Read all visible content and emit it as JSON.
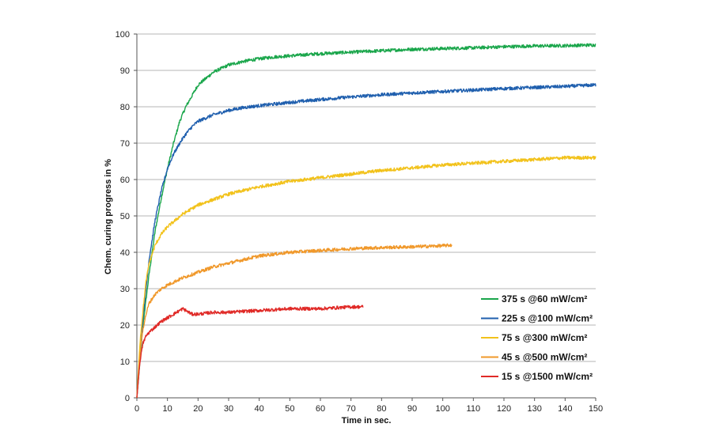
{
  "chart_data": {
    "type": "line",
    "title": "",
    "xlabel": "Time in sec.",
    "ylabel": "Chem. curing progress in %",
    "xlim": [
      0,
      150
    ],
    "ylim": [
      0,
      100
    ],
    "x_ticks": [
      0,
      10,
      20,
      30,
      40,
      50,
      60,
      70,
      80,
      90,
      100,
      110,
      120,
      130,
      140,
      150
    ],
    "y_ticks": [
      0,
      10,
      20,
      30,
      40,
      50,
      60,
      70,
      80,
      90,
      100
    ],
    "grid": "horizontal",
    "legend_position": "bottom-right",
    "series": [
      {
        "name": "375 s @60 mW/cm²",
        "color": "#1aa64b",
        "x": [
          0,
          2,
          4,
          6,
          8,
          10,
          12,
          14,
          16,
          18,
          20,
          25,
          30,
          35,
          40,
          45,
          50,
          55,
          60,
          70,
          80,
          90,
          100,
          110,
          120,
          130,
          140,
          150
        ],
        "y": [
          0,
          20,
          34,
          46,
          55,
          63,
          70,
          76,
          80,
          83,
          86,
          89.5,
          91.5,
          92.5,
          93.2,
          93.7,
          94,
          94.3,
          94.6,
          95,
          95.4,
          95.8,
          96,
          96.2,
          96.5,
          96.7,
          96.8,
          97
        ]
      },
      {
        "name": "225 s @100 mW/cm²",
        "color": "#1f5fae",
        "x": [
          0,
          2,
          4,
          6,
          8,
          10,
          12,
          14,
          16,
          18,
          20,
          25,
          30,
          35,
          40,
          50,
          60,
          70,
          80,
          90,
          100,
          110,
          120,
          130,
          140,
          150
        ],
        "y": [
          0,
          22,
          38,
          49,
          57,
          63,
          67,
          70,
          72.5,
          74.5,
          76,
          77.8,
          79,
          79.8,
          80.3,
          81.2,
          82,
          82.7,
          83.3,
          83.8,
          84.2,
          84.6,
          85,
          85.3,
          85.6,
          86
        ]
      },
      {
        "name": "75 s @300 mW/cm²",
        "color": "#f2c21b",
        "x": [
          0,
          1,
          2,
          3,
          4,
          6,
          8,
          10,
          15,
          20,
          25,
          30,
          40,
          50,
          60,
          70,
          80,
          90,
          100,
          110,
          120,
          130,
          140,
          150
        ],
        "y": [
          0,
          15,
          24,
          32,
          37,
          42,
          45,
          47,
          50.5,
          53,
          54.5,
          56,
          58,
          59.5,
          60.5,
          61.5,
          62.5,
          63.2,
          64,
          64.5,
          65,
          65.5,
          66,
          66
        ]
      },
      {
        "name": "45 s @500 mW/cm²",
        "color": "#f0982a",
        "x": [
          0,
          1,
          2,
          3,
          4,
          6,
          8,
          10,
          15,
          20,
          25,
          30,
          35,
          40,
          45,
          50,
          60,
          70,
          80,
          90,
          100,
          103
        ],
        "y": [
          0,
          12,
          19,
          23,
          26,
          28.5,
          30,
          31,
          33,
          34.5,
          36,
          37,
          38,
          39,
          39.5,
          40,
          40.5,
          41,
          41.3,
          41.5,
          41.8,
          42
        ]
      },
      {
        "name": "15 s @1500 mW/cm²",
        "color": "#e02a27",
        "x": [
          0,
          1,
          2,
          3,
          4,
          6,
          8,
          10,
          12,
          14,
          15,
          16,
          18,
          20,
          25,
          30,
          40,
          50,
          60,
          70,
          74
        ],
        "y": [
          0,
          10,
          15,
          17,
          18,
          19.5,
          21,
          22,
          23,
          24,
          24.5,
          24,
          23,
          23,
          23.5,
          23.5,
          24,
          24.5,
          24.5,
          25,
          25
        ]
      }
    ]
  }
}
